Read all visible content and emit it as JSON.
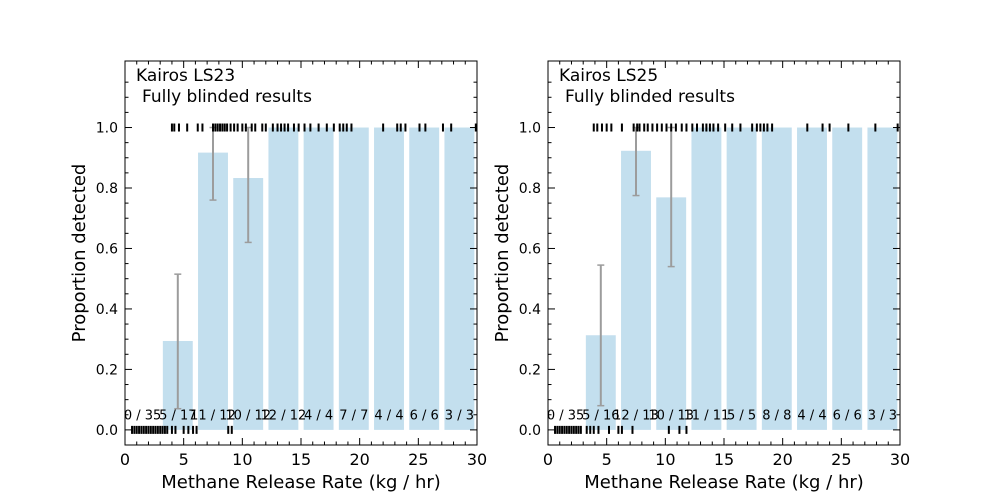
{
  "chart_data": [
    {
      "type": "bar",
      "title": "Kairos LS23",
      "subtitle": "Fully blinded results",
      "xlabel": "Methane Release Rate (kg / hr)",
      "ylabel": "Proportion detected",
      "xlim": [
        0,
        30
      ],
      "ylim": [
        -0.05,
        1.22
      ],
      "xticks": [
        0,
        5,
        10,
        15,
        20,
        25,
        30
      ],
      "yticks": [
        0.0,
        0.2,
        0.4,
        0.6,
        0.8,
        1.0
      ],
      "bin_width": 3,
      "bins": [
        {
          "center": 1.5,
          "value": 0.0,
          "label": "0 / 35",
          "err": null
        },
        {
          "center": 4.5,
          "value": 0.294,
          "label": "5 / 17",
          "err": [
            0.07,
            0.515
          ]
        },
        {
          "center": 7.5,
          "value": 0.917,
          "label": "11 / 12",
          "err": [
            0.76,
            1.0
          ]
        },
        {
          "center": 10.5,
          "value": 0.833,
          "label": "10 / 12",
          "err": [
            0.62,
            1.0
          ]
        },
        {
          "center": 13.5,
          "value": 1.0,
          "label": "12 / 12",
          "err": null
        },
        {
          "center": 16.5,
          "value": 1.0,
          "label": "4 / 4",
          "err": null
        },
        {
          "center": 19.5,
          "value": 1.0,
          "label": "7 / 7",
          "err": null
        },
        {
          "center": 22.5,
          "value": 1.0,
          "label": "4 / 4",
          "err": null
        },
        {
          "center": 25.5,
          "value": 1.0,
          "label": "6 / 6",
          "err": null
        },
        {
          "center": 28.5,
          "value": 1.0,
          "label": "3 / 3",
          "err": null
        }
      ],
      "rug_detected": [
        4.0,
        4.2,
        4.6,
        5.3,
        6.2,
        6.6,
        7.5,
        7.7,
        7.9,
        8.1,
        8.3,
        8.5,
        8.7,
        9.0,
        9.3,
        9.6,
        10.0,
        10.3,
        10.8,
        11.1,
        11.7,
        12.0,
        12.6,
        13.0,
        13.3,
        13.6,
        13.9,
        14.4,
        14.8,
        15.3,
        15.8,
        16.5,
        17.2,
        17.8,
        18.3,
        18.6,
        18.9,
        19.3,
        22.0,
        23.2,
        23.5,
        23.9,
        25.1,
        25.6,
        27.1,
        27.8,
        29.9
      ],
      "rug_missed": [
        0.6,
        0.8,
        1.0,
        1.2,
        1.4,
        1.6,
        1.8,
        2.0,
        2.2,
        2.4,
        2.6,
        2.8,
        3.0,
        3.2,
        3.4,
        3.6,
        4.0,
        4.3,
        5.0,
        5.4,
        5.8,
        6.1,
        8.8,
        9.1
      ]
    },
    {
      "type": "bar",
      "title": "Kairos LS25",
      "subtitle": "Fully blinded results",
      "xlabel": "Methane Release Rate (kg / hr)",
      "ylabel": "Proportion detected",
      "xlim": [
        0,
        30
      ],
      "ylim": [
        -0.05,
        1.22
      ],
      "xticks": [
        0,
        5,
        10,
        15,
        20,
        25,
        30
      ],
      "yticks": [
        0.0,
        0.2,
        0.4,
        0.6,
        0.8,
        1.0
      ],
      "bin_width": 3,
      "bins": [
        {
          "center": 1.5,
          "value": 0.0,
          "label": "0 / 35",
          "err": null
        },
        {
          "center": 4.5,
          "value": 0.313,
          "label": "5 / 16",
          "err": [
            0.08,
            0.545
          ]
        },
        {
          "center": 7.5,
          "value": 0.923,
          "label": "12 / 13",
          "err": [
            0.775,
            1.0
          ]
        },
        {
          "center": 10.5,
          "value": 0.769,
          "label": "10 / 13",
          "err": [
            0.54,
            1.0
          ]
        },
        {
          "center": 13.5,
          "value": 1.0,
          "label": "11 / 11",
          "err": null
        },
        {
          "center": 16.5,
          "value": 1.0,
          "label": "5 / 5",
          "err": null
        },
        {
          "center": 19.5,
          "value": 1.0,
          "label": "8 / 8",
          "err": null
        },
        {
          "center": 22.5,
          "value": 1.0,
          "label": "4 / 4",
          "err": null
        },
        {
          "center": 25.5,
          "value": 1.0,
          "label": "6 / 6",
          "err": null
        },
        {
          "center": 28.5,
          "value": 1.0,
          "label": "3 / 3",
          "err": null
        }
      ],
      "rug_detected": [
        3.9,
        4.2,
        4.6,
        5.0,
        5.4,
        6.3,
        7.3,
        7.6,
        7.8,
        8.2,
        8.5,
        8.9,
        9.3,
        9.7,
        10.1,
        10.5,
        10.9,
        11.4,
        11.8,
        12.3,
        12.7,
        13.2,
        13.5,
        13.8,
        14.1,
        14.5,
        15.1,
        15.7,
        16.4,
        17.4,
        17.8,
        18.1,
        18.4,
        18.7,
        19.1,
        22.1,
        23.4,
        24.0,
        25.6,
        27.9,
        29.8
      ],
      "rug_missed": [
        0.6,
        0.8,
        1.0,
        1.2,
        1.4,
        1.6,
        1.8,
        2.0,
        2.2,
        2.4,
        2.6,
        2.8,
        3.3,
        3.6,
        3.9,
        4.3,
        5.2,
        6.0,
        6.3,
        7.2,
        10.3,
        11.2,
        11.8
      ]
    }
  ]
}
